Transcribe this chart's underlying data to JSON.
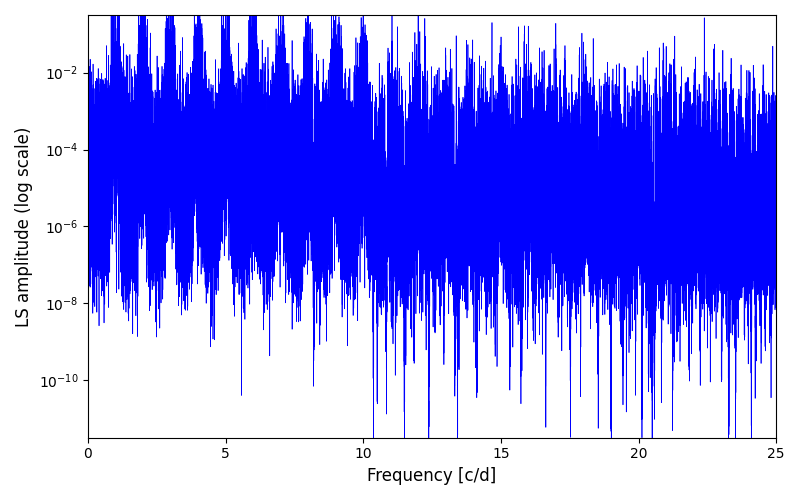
{
  "xlabel": "Frequency [c/d]",
  "ylabel": "LS amplitude (log scale)",
  "xlim": [
    0,
    25
  ],
  "ylim_log": [
    -11.5,
    -0.5
  ],
  "line_color": "#0000ff",
  "line_width": 0.5,
  "figsize": [
    8.0,
    5.0
  ],
  "dpi": 100,
  "freq_max": 25.0,
  "n_points": 50000,
  "seed": 137,
  "background_color": "#ffffff"
}
